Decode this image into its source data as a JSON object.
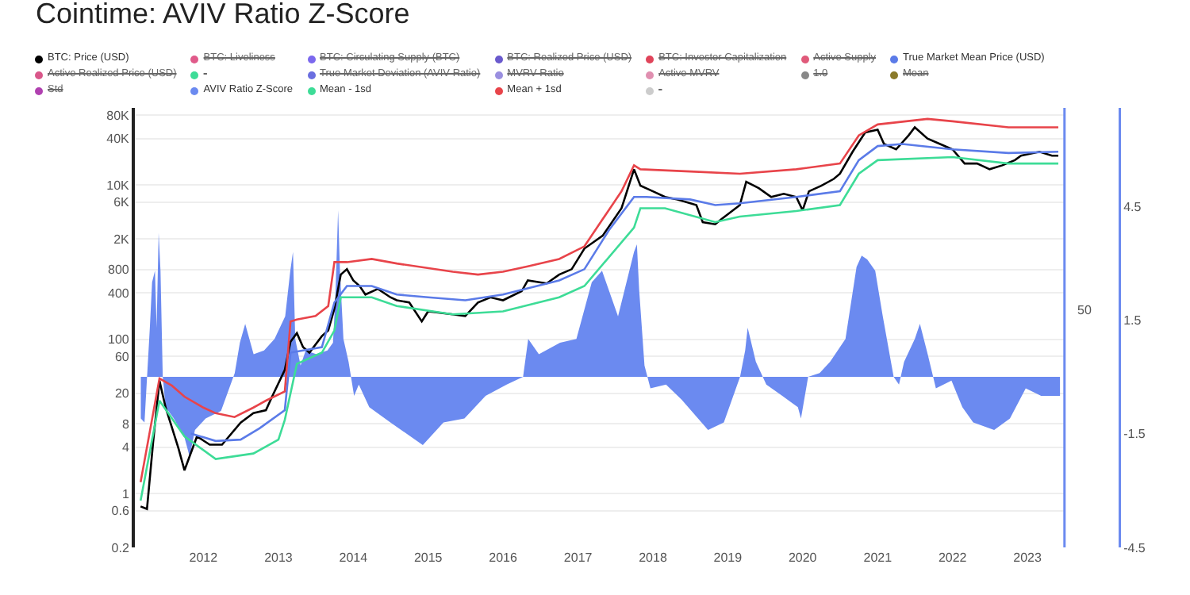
{
  "chart_data": {
    "type": "line",
    "title": "Cointime: AVIV Ratio Z-Score",
    "annotations": [
      "50"
    ],
    "log": true,
    "grid": "y",
    "legend": "top",
    "xlim": [
      "2011-02",
      "2023-07"
    ],
    "xticks": [
      "2012",
      "2013",
      "2014",
      "2015",
      "2016",
      "2017",
      "2018",
      "2019",
      "2020",
      "2021",
      "2022",
      "2023"
    ],
    "ylim": [
      0.2,
      100000
    ],
    "yticks": [
      0.2,
      0.6,
      1,
      4,
      8,
      20,
      60,
      100,
      400,
      800,
      {
        "value": 2000,
        "label": "2K"
      },
      {
        "value": 6000,
        "label": "6K"
      },
      {
        "value": 10000,
        "label": "10K"
      },
      {
        "value": 40000,
        "label": "40K"
      },
      {
        "value": 80000,
        "label": "80K"
      }
    ],
    "y2lim": [
      -4.5,
      7.1
    ],
    "y2ticks": [
      -4.5,
      -1.5,
      1.5,
      4.5
    ],
    "series": [
      {
        "name": "BTC: Price (USD)",
        "color": "#000000",
        "x": [
          "2011-03",
          "2011-04",
          "2011-05",
          "2011-06",
          "2011-07",
          "2011-09",
          "2011-10",
          "2011-12",
          "2012-02",
          "2012-04",
          "2012-07",
          "2012-09",
          "2012-11",
          "2012-12",
          "2013-02",
          "2013-03",
          "2013-04",
          "2013-05",
          "2013-06",
          "2013-08",
          "2013-09",
          "2013-10",
          "2013-11",
          "2013-12",
          "2014-01",
          "2014-02",
          "2014-03",
          "2014-05",
          "2014-07",
          "2014-08",
          "2014-10",
          "2014-12",
          "2015-01",
          "2015-05",
          "2015-07",
          "2015-09",
          "2015-11",
          "2016-01",
          "2016-04",
          "2016-05",
          "2016-08",
          "2016-10",
          "2016-12",
          "2017-02",
          "2017-05",
          "2017-08",
          "2017-10",
          "2017-11",
          "2018-01",
          "2018-03",
          "2018-05",
          "2018-08",
          "2018-09",
          "2018-11",
          "2018-12",
          "2019-03",
          "2019-04",
          "2019-06",
          "2019-08",
          "2019-10",
          "2019-12",
          "2020-01",
          "2020-02",
          "2020-04",
          "2020-06",
          "2020-07",
          "2020-09",
          "2020-11",
          "2021-01",
          "2021-02",
          "2021-04",
          "2021-06",
          "2021-07",
          "2021-09",
          "2021-11",
          "2022-01",
          "2022-03",
          "2022-05",
          "2022-07",
          "2022-09",
          "2022-11",
          "2022-12",
          "2023-03",
          "2023-05",
          "2023-06"
        ],
        "values": [
          0.68,
          0.63,
          4.6,
          29,
          13,
          3.9,
          2.0,
          5.5,
          4.3,
          4.3,
          8.3,
          11,
          12,
          18,
          40,
          93,
          120,
          79,
          67,
          110,
          130,
          250,
          690,
          810,
          580,
          490,
          380,
          450,
          350,
          320,
          300,
          170,
          230,
          210,
          200,
          300,
          350,
          320,
          420,
          580,
          530,
          690,
          810,
          1500,
          2200,
          5000,
          16000,
          9800,
          8300,
          7000,
          6500,
          5500,
          3300,
          3100,
          3600,
          5500,
          11000,
          9100,
          7000,
          7700,
          7000,
          4700,
          8300,
          9800,
          12000,
          14000,
          27000,
          48000,
          52000,
          34000,
          29000,
          44000,
          56000,
          40000,
          34000,
          29000,
          19000,
          19000,
          16000,
          18000,
          21000,
          24000,
          27000,
          24000,
          24000
        ]
      },
      {
        "name": "BTC: Liveliness",
        "color": "#e05a8a"
      },
      {
        "name": "BTC: Circulating Supply (BTC)",
        "color": "#7b68ee"
      },
      {
        "name": "BTC: Realized Price (USD)",
        "color": "#6a5acd"
      },
      {
        "name": "BTC: Investor Capitalization",
        "color": "#e0445a"
      },
      {
        "name": "Active Supply",
        "color": "#e05a7a"
      },
      {
        "name": "True Market Mean Price (USD)",
        "color": "#5b7be8",
        "x": [
          "2011-11",
          "2012-03",
          "2012-07",
          "2012-10",
          "2013-02",
          "2013-03",
          "2013-08",
          "2013-10",
          "2013-12",
          "2014-04",
          "2014-08",
          "2015-01",
          "2015-07",
          "2016-01",
          "2016-10",
          "2017-02",
          "2017-06",
          "2017-10",
          "2017-12",
          "2018-07",
          "2018-11",
          "2019-03",
          "2019-12",
          "2020-07",
          "2020-10",
          "2021-01",
          "2021-05",
          "2022-01",
          "2022-10",
          "2023-06"
        ],
        "values": [
          6.0,
          4.8,
          5.0,
          7.0,
          12,
          67,
          79,
          300,
          490,
          490,
          380,
          350,
          320,
          380,
          580,
          810,
          2600,
          7000,
          7000,
          6500,
          5500,
          5800,
          7000,
          8300,
          21000,
          32000,
          34000,
          29000,
          26000,
          27000
        ]
      },
      {
        "name": "Active Realized Price (USD)",
        "color": "#d9578a"
      },
      {
        "name": "-",
        "color": "#3ddc97"
      },
      {
        "name": "True Market Deviation (AVIV Ratio)",
        "color": "#6a6ee0"
      },
      {
        "name": "MVRV Ratio",
        "color": "#9a8fe0"
      },
      {
        "name": "Active MVRV",
        "color": "#e08fb0"
      },
      {
        "name": "1.0",
        "color": "#888888"
      },
      {
        "name": "Mean",
        "color": "#8a7a2a"
      },
      {
        "name": "Std",
        "color": "#b040b0"
      },
      {
        "name": "AVIV Ratio Z-Score",
        "color": "#6b8af0",
        "type": "area",
        "axis": "y2",
        "x": [
          "2011-03-02",
          "2011-03-20",
          "2011-04-15",
          "2011-04-26",
          "2011-05-10",
          "2011-05-18",
          "2011-05-28",
          "2011-06-06",
          "2011-06-17",
          "2011-07-01",
          "2011-08-10",
          "2011-10-01",
          "2011-10-26",
          "2011-11-21",
          "2012-01-12",
          "2012-03-27",
          "2012-06-02",
          "2012-06-27",
          "2012-07-23",
          "2012-09-02",
          "2012-10-23",
          "2012-12-13",
          "2013-02-03",
          "2013-02-28",
          "2013-03-13",
          "2013-03-24",
          "2013-04-19",
          "2013-05-14",
          "2013-07-05",
          "2013-08-28",
          "2013-09-24",
          "2013-10-05",
          "2013-10-19",
          "2013-10-28",
          "2013-11-14",
          "2013-12-09",
          "2014-01-05",
          "2014-01-28",
          "2014-03-20",
          "2014-07-01",
          "2014-12-06",
          "2015-03-17",
          "2015-06-27",
          "2015-10-08",
          "2016-01-19",
          "2016-04-08",
          "2016-05-03",
          "2016-06-24",
          "2016-10-05",
          "2016-12-24",
          "2017-03-09",
          "2017-04-28",
          "2017-07-15",
          "2017-10-01",
          "2017-10-15",
          "2017-10-26",
          "2017-11-21",
          "2017-12-20",
          "2018-03-06",
          "2018-05-21",
          "2018-09-27",
          "2018-12-13",
          "2019-03-02",
          "2019-03-27",
          "2019-04-08",
          "2019-05-18",
          "2019-07-08",
          "2019-09-24",
          "2019-12-09",
          "2019-12-24",
          "2020-01-28",
          "2020-03-24",
          "2020-05-14",
          "2020-07-28",
          "2020-09-20",
          "2020-10-15",
          "2020-11-11",
          "2020-12-20",
          "2021-01-26",
          "2021-03-20",
          "2021-04-15",
          "2021-05-10",
          "2021-07-01",
          "2021-07-26",
          "2021-09-02",
          "2021-10-12",
          "2021-12-27",
          "2022-02-18",
          "2022-04-12",
          "2022-07-23",
          "2022-10-08",
          "2022-12-24",
          "2023-03-09",
          "2023-05-03",
          "2023-06-09"
        ],
        "values": [
          -1.1,
          -1.2,
          1.3,
          2.5,
          2.8,
          1.3,
          3.8,
          2.8,
          0,
          -0.8,
          -1.1,
          -1.6,
          -2.1,
          -1.4,
          -1.1,
          -0.9,
          0.1,
          0.9,
          1.4,
          0.6,
          0.7,
          1.0,
          1.6,
          2.8,
          3.3,
          1.0,
          0.3,
          0.7,
          0.6,
          0.7,
          0.9,
          2.0,
          4.4,
          2.8,
          1.0,
          0.4,
          -0.5,
          -0.2,
          -0.8,
          -1.2,
          -1.8,
          -1.2,
          -1.1,
          -0.5,
          -0.2,
          0,
          1.0,
          0.6,
          0.9,
          1.0,
          2.5,
          2.8,
          1.6,
          3.3,
          3.5,
          2.3,
          0.3,
          -0.3,
          -0.2,
          -0.6,
          -1.4,
          -1.2,
          0,
          0.7,
          1.3,
          0.4,
          -0.2,
          -0.5,
          -0.8,
          -1.1,
          0,
          0.1,
          0.4,
          1.0,
          2.9,
          3.2,
          3.1,
          2.8,
          1.6,
          0,
          -0.2,
          0.4,
          1.0,
          1.4,
          0.6,
          -0.3,
          -0.1,
          -0.8,
          -1.2,
          -1.4,
          -1.1,
          -0.3,
          -0.5,
          -0.5,
          -0.5
        ]
      },
      {
        "name": "Mean - 1sd",
        "color": "#3ddc97",
        "x": [
          "2011-03",
          "2011-06",
          "2011-10",
          "2012-03",
          "2012-09",
          "2013-01",
          "2013-02",
          "2013-04",
          "2013-08",
          "2013-10",
          "2013-11",
          "2014-04",
          "2014-08",
          "2015-05",
          "2016-01",
          "2016-10",
          "2017-02",
          "2017-10",
          "2017-11",
          "2018-03",
          "2018-11",
          "2019-03",
          "2019-12",
          "2020-07",
          "2020-10",
          "2021-01",
          "2022-01",
          "2022-10",
          "2023-06"
        ],
        "values": [
          0.81,
          16,
          5.5,
          2.8,
          3.3,
          5.0,
          9.0,
          48,
          67,
          130,
          350,
          350,
          270,
          210,
          230,
          350,
          490,
          2800,
          5000,
          5000,
          3300,
          3900,
          4600,
          5500,
          14000,
          21000,
          23000,
          19000,
          19000
        ]
      },
      {
        "name": "Mean + 1sd",
        "color": "#e8444a",
        "x": [
          "2011-03",
          "2011-06",
          "2011-08",
          "2011-10",
          "2012-01",
          "2012-03",
          "2012-06",
          "2012-09",
          "2012-11",
          "2013-02",
          "2013-03",
          "2013-04",
          "2013-07",
          "2013-09",
          "2013-10",
          "2013-12",
          "2014-04",
          "2014-08",
          "2015-05",
          "2015-09",
          "2016-01",
          "2016-05",
          "2016-10",
          "2017-02",
          "2017-05",
          "2017-08",
          "2017-10",
          "2017-11",
          "2018-07",
          "2019-03",
          "2019-12",
          "2020-07",
          "2020-10",
          "2021-01",
          "2021-09",
          "2022-01",
          "2022-10",
          "2023-06"
        ],
        "values": [
          1.4,
          31,
          25,
          18,
          13,
          11,
          9.8,
          13,
          16,
          21,
          170,
          180,
          200,
          270,
          1000,
          1000,
          1100,
          960,
          750,
          690,
          750,
          880,
          1100,
          1600,
          3600,
          8300,
          18000,
          16000,
          15000,
          14000,
          16000,
          19000,
          44000,
          61000,
          72000,
          67000,
          56000,
          56000
        ]
      },
      {
        "name": "-",
        "color": "#cccccc"
      }
    ]
  }
}
